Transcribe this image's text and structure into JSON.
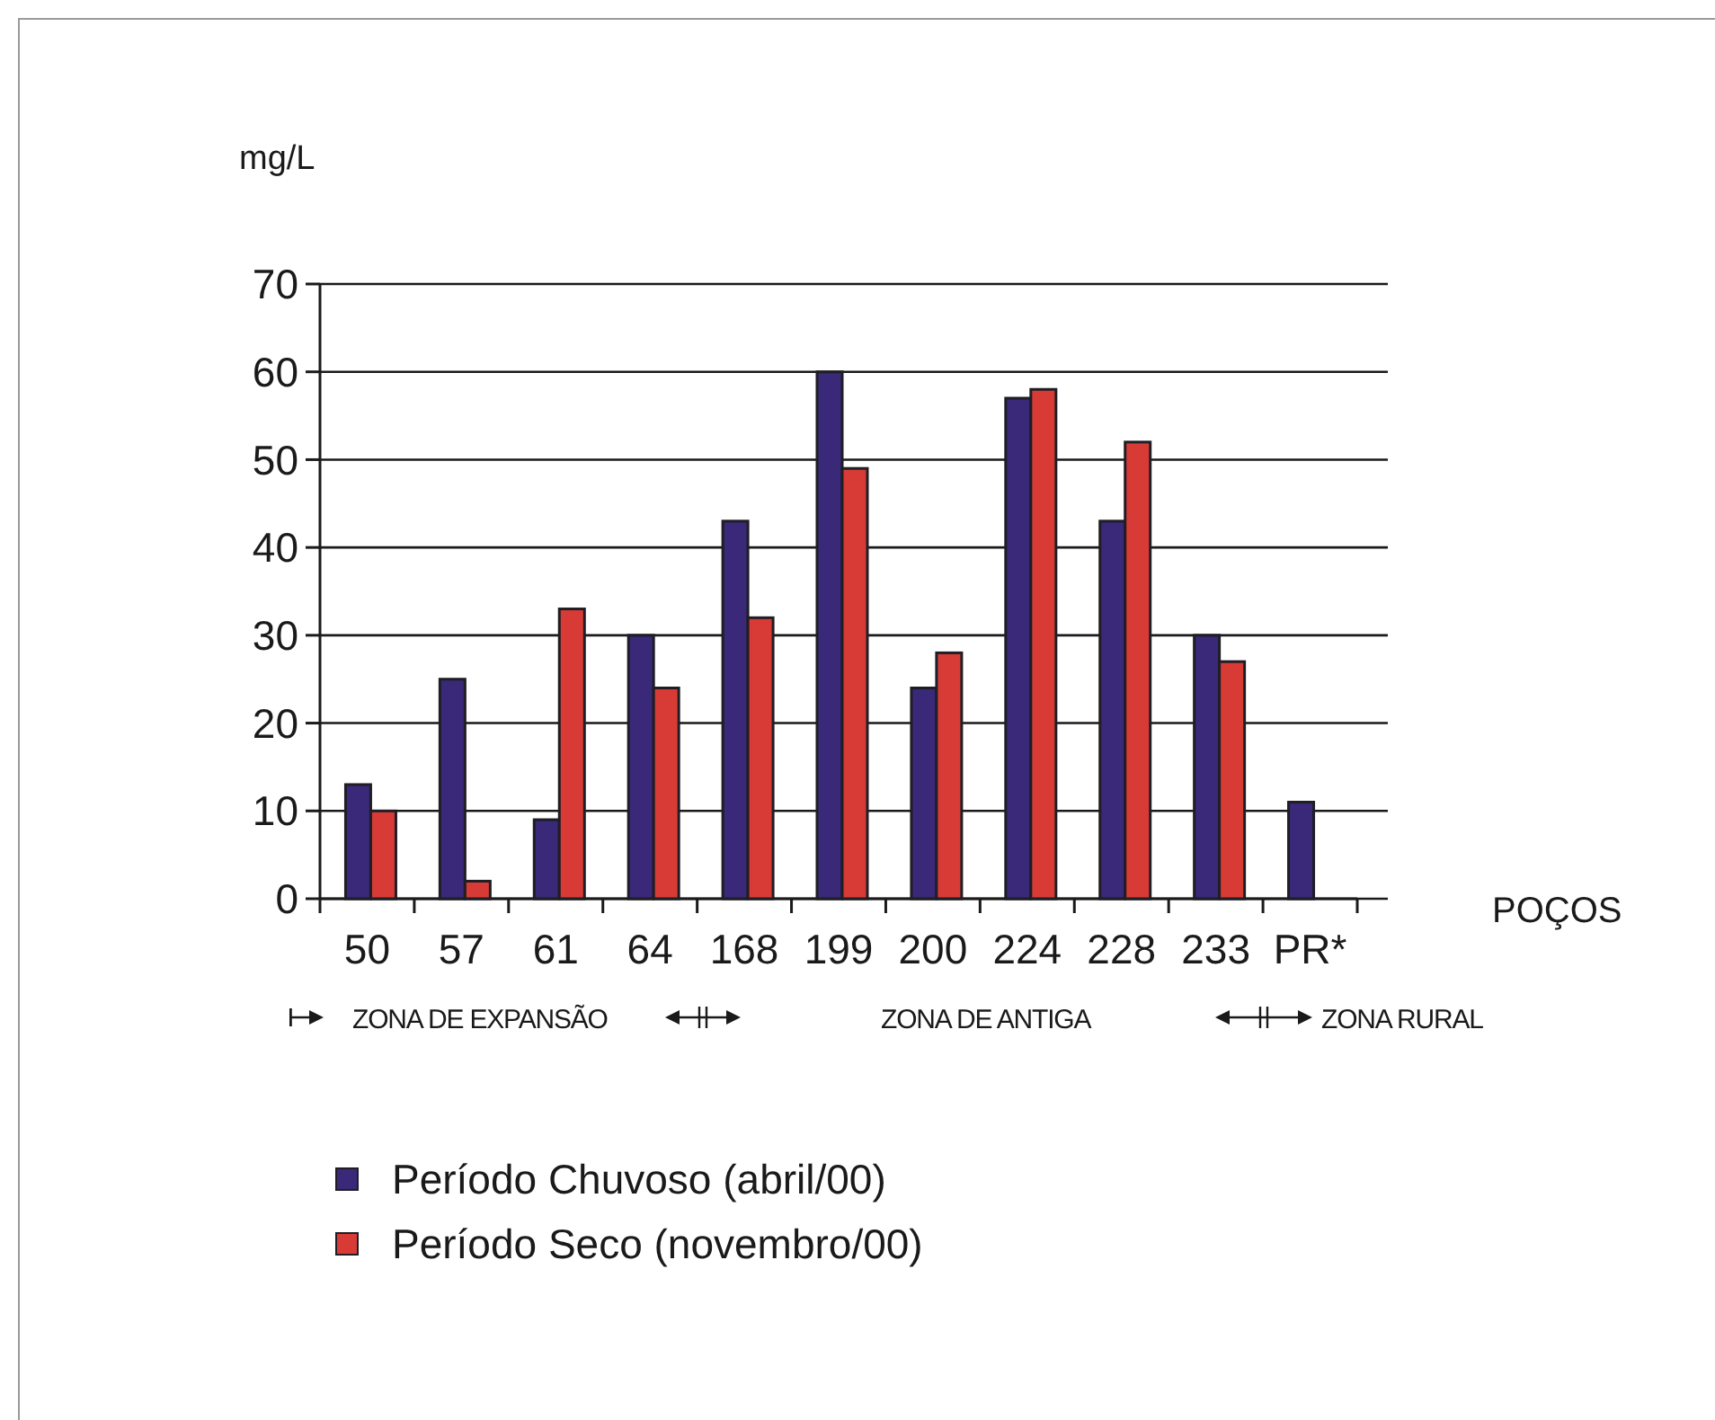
{
  "chart_data": {
    "type": "bar",
    "ylabel": "mg/L",
    "xlabel": "POÇOS",
    "categories": [
      "50",
      "57",
      "61",
      "64",
      "168",
      "199",
      "200",
      "224",
      "228",
      "233",
      "PR*"
    ],
    "series": [
      {
        "name": "Período Chuvoso (abril/00)",
        "color": "#3a2878",
        "values": [
          13,
          25,
          9,
          30,
          43,
          60,
          24,
          57,
          43,
          30,
          11
        ]
      },
      {
        "name": "Período Seco (novembro/00)",
        "color": "#d83b35",
        "values": [
          10,
          2,
          33,
          24,
          32,
          49,
          28,
          58,
          52,
          27,
          null
        ]
      }
    ],
    "ylim": [
      0,
      70
    ],
    "yticks": [
      0,
      10,
      20,
      30,
      40,
      50,
      60,
      70
    ],
    "grid": "y",
    "legend": "bottom",
    "annotations": [
      "ZONA DE EXPANSÃO",
      "ZONA DE ANTIGA",
      "ZONA RURAL"
    ]
  }
}
